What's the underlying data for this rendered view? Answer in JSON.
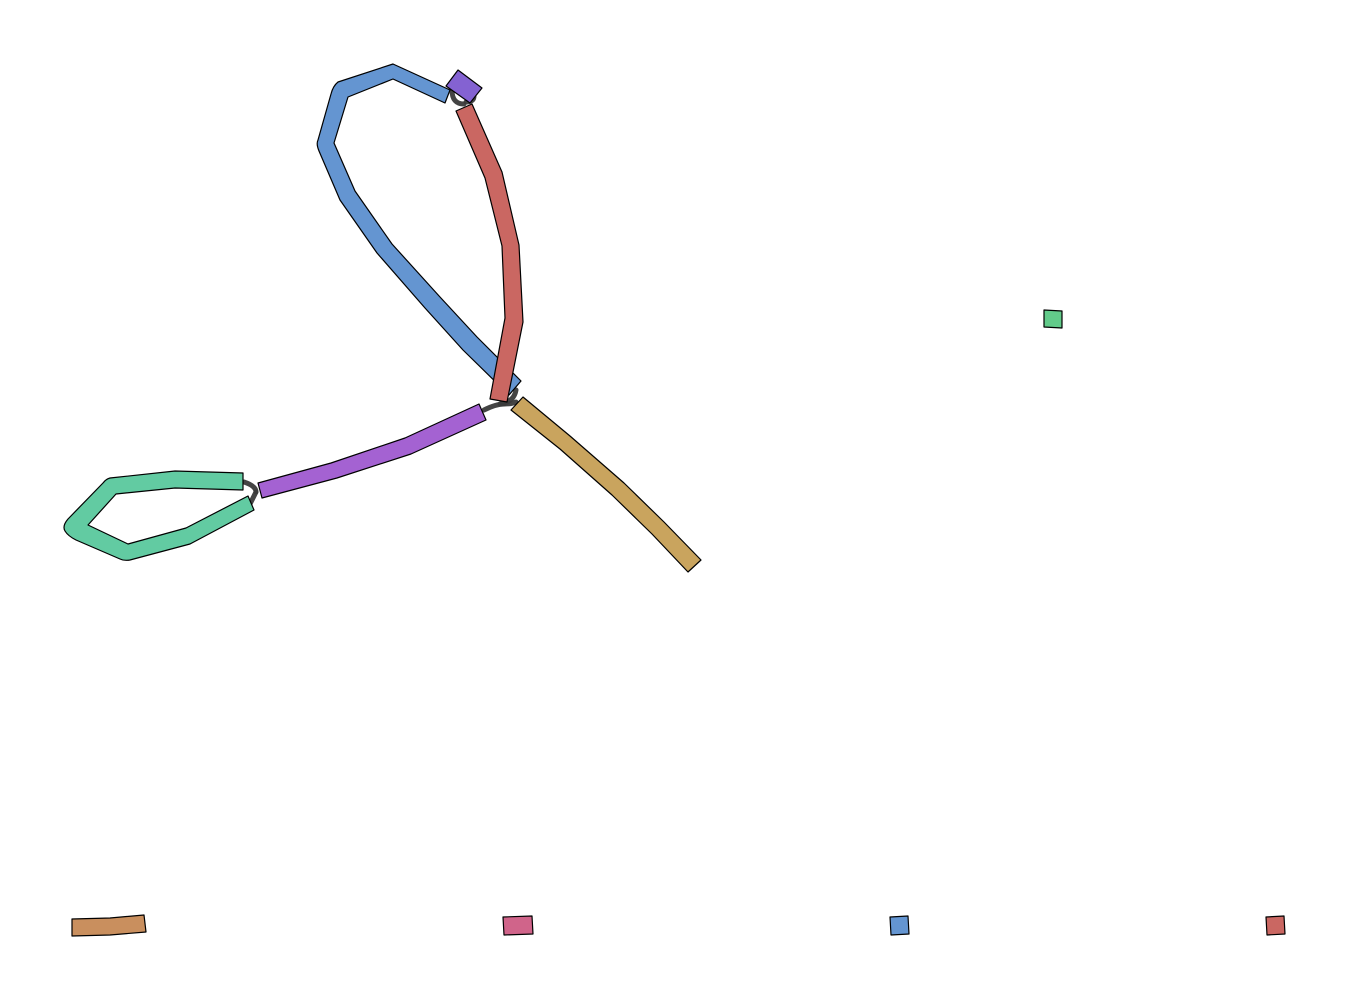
{
  "graph": {
    "background": "#ffffff",
    "segment_colors": {
      "blue": "#6495d1",
      "violet": "#8462d2",
      "red": "#ca6762",
      "tan": "#c9a45e",
      "purple": "#a462d2",
      "green": "#62cba2",
      "small_green": "#62cb8a",
      "orange": "#c98f5e",
      "pink": "#d0648a",
      "small_blue": "#6495d1",
      "small_red": "#ca6762"
    },
    "link_color": "#3a3a3a"
  }
}
